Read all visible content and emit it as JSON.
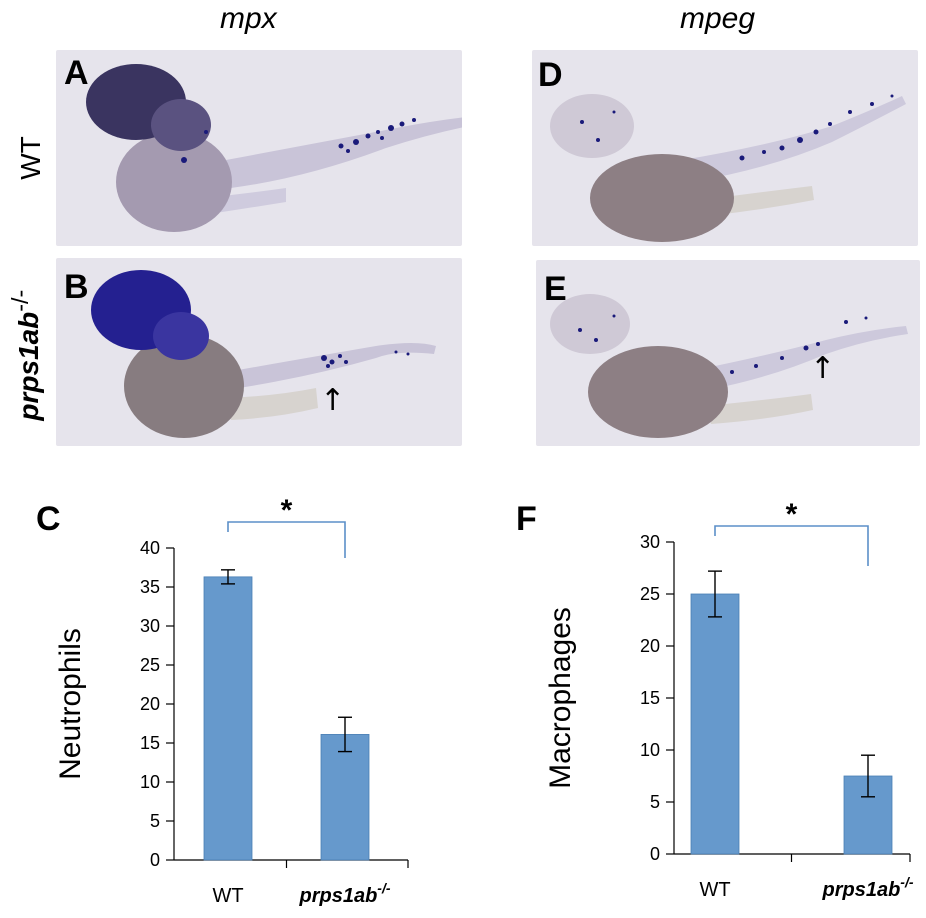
{
  "figure": {
    "col_titles": [
      "mpx",
      "mpeg"
    ],
    "row_labels": [
      {
        "text": "WT",
        "base": "",
        "sup": ""
      },
      {
        "text": "",
        "base": "prps1ab",
        "sup": "-/-"
      }
    ],
    "panel_letters": [
      "A",
      "B",
      "C",
      "D",
      "E",
      "F"
    ],
    "arrow_symbol": "↑"
  },
  "colors": {
    "bar": "#6699cc",
    "bar_border": "#4a7fb5",
    "bracket": "#5b8fc8",
    "photo_bg_top": "#e6e4ec",
    "photo_bg_bottom": "#dddbe3",
    "stain": "#1a1a7a",
    "yolk": "#8e7f85"
  },
  "chart_data": [
    {
      "type": "bar",
      "panel": "C",
      "categories": [
        "WT",
        "prps1ab-/-"
      ],
      "category_display": [
        {
          "base": "WT",
          "sup": ""
        },
        {
          "base": "prps1ab",
          "sup": "-/-"
        }
      ],
      "values": [
        36.3,
        16.1
      ],
      "errors": [
        0.9,
        2.2
      ],
      "ylabel": "Neutrophils",
      "ylim": [
        0,
        40
      ],
      "yticks": [
        "0",
        "5",
        "10",
        "15",
        "20",
        "25",
        "30",
        "35",
        "40"
      ],
      "significance": "*"
    },
    {
      "type": "bar",
      "panel": "F",
      "categories": [
        "WT",
        "prps1ab-/-"
      ],
      "category_display": [
        {
          "base": "WT",
          "sup": ""
        },
        {
          "base": "prps1ab",
          "sup": "-/-"
        }
      ],
      "values": [
        25.0,
        7.5
      ],
      "errors": [
        2.2,
        2.0
      ],
      "ylabel": "Macrophages",
      "ylim": [
        0,
        30
      ],
      "yticks": [
        "0",
        "5",
        "10",
        "15",
        "20",
        "25",
        "30"
      ],
      "significance": "*"
    }
  ]
}
